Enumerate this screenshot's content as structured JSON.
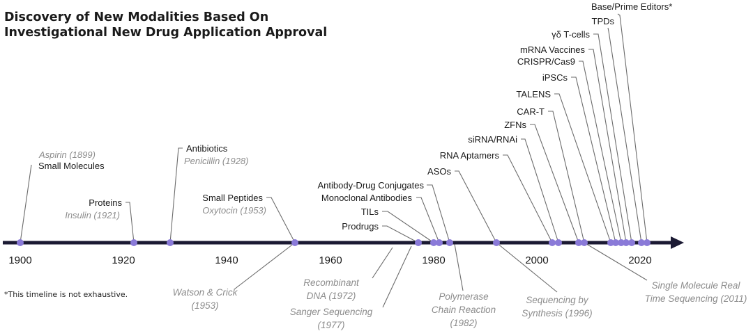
{
  "title": {
    "line1": "Discovery of New Modalities Based On",
    "line2": "Investigational New Drug Application Approval"
  },
  "footnote": "*This timeline is not exhaustive.",
  "colors": {
    "axis": "#1b1a33",
    "dot": "#8a7ad8",
    "leader": "#6b6b6b",
    "label": "#1a1a1a",
    "sublabel": "#8c8c8c"
  },
  "axis_ticks": [
    "1900",
    "1920",
    "1940",
    "1960",
    "1980",
    "2000",
    "2020"
  ],
  "above_events": [
    {
      "label": "Small Molecules",
      "sub": "Aspirin (1899)"
    },
    {
      "label": "Proteins",
      "sub": "Insulin (1921)"
    },
    {
      "label": "Antibiotics",
      "sub": "Penicillin (1928)"
    },
    {
      "label": "Small Peptides",
      "sub": "Oxytocin  (1953)"
    },
    {
      "label": "Prodrugs"
    },
    {
      "label": "TILs"
    },
    {
      "label": "Monoclonal Antibodies"
    },
    {
      "label": "Antibody-Drug Conjugates"
    },
    {
      "label": "ASOs"
    },
    {
      "label": "RNA Aptamers"
    },
    {
      "label": "siRNA/RNAi"
    },
    {
      "label": "ZFNs"
    },
    {
      "label": "CAR-T"
    },
    {
      "label": "TALENS"
    },
    {
      "label": "iPSCs"
    },
    {
      "label": "CRISPR/Cas9"
    },
    {
      "label": "mRNA Vaccines"
    },
    {
      "label": "γδ T-cells"
    },
    {
      "label": "TPDs"
    },
    {
      "label": "Base/Prime Editors*"
    }
  ],
  "below_events": [
    {
      "lines": [
        "Watson & Crick",
        "(1953)"
      ]
    },
    {
      "lines": [
        "Recombinant",
        "DNA (1972)"
      ]
    },
    {
      "lines": [
        "Sanger Sequencing",
        "(1977)"
      ]
    },
    {
      "lines": [
        "Polymerase",
        "Chain Reaction",
        "(1982)"
      ]
    },
    {
      "lines": [
        "Sequencing by",
        "Synthesis (1996)"
      ]
    },
    {
      "lines": [
        "Single Molecule Real",
        "Time Sequencing (2011)"
      ]
    }
  ]
}
